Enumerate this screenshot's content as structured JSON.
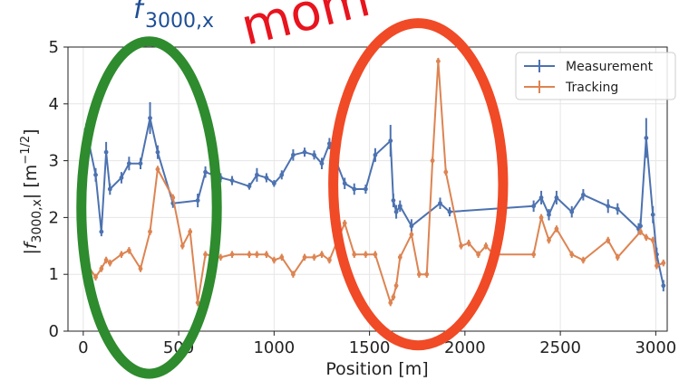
{
  "chart_data": {
    "type": "line",
    "title": "",
    "xlabel": "Position [m]",
    "ylabel_parts": {
      "prefix": "|f",
      "subscript": "3000,x",
      "middle": "| [m",
      "superscript": "−1/2",
      "suffix": "]"
    },
    "xlim": [
      -80,
      3060
    ],
    "ylim": [
      0,
      5
    ],
    "x_ticks": [
      0,
      500,
      1000,
      1500,
      2000,
      2500,
      3000
    ],
    "y_ticks": [
      0,
      1,
      2,
      3,
      4,
      5
    ],
    "grid": true,
    "legend": {
      "position": "top-right"
    },
    "top_fragments": {
      "left": {
        "text": "f",
        "subscript": "3000,x",
        "color": "#1f4e96"
      },
      "right": {
        "text": "mom",
        "color": "#e8141e"
      }
    },
    "annotations": [
      {
        "shape": "ellipse",
        "color": "#2e8b2e",
        "x_range": [
          -10,
          700
        ],
        "y_range": [
          -0.75,
          5.1
        ]
      },
      {
        "shape": "ellipse",
        "color": "#f04a26",
        "x_range": [
          1310,
          2200
        ],
        "y_range": [
          -0.25,
          5.42
        ]
      }
    ],
    "series": [
      {
        "name": "Measurement",
        "color": "#4c72b0",
        "x": [
          0,
          15,
          65,
          95,
          120,
          140,
          200,
          240,
          300,
          350,
          390,
          470,
          600,
          640,
          720,
          780,
          870,
          910,
          960,
          1000,
          1040,
          1100,
          1160,
          1210,
          1250,
          1290,
          1370,
          1420,
          1480,
          1530,
          1610,
          1625,
          1640,
          1660,
          1720,
          1870,
          1920,
          2360,
          2400,
          2440,
          2480,
          2560,
          2620,
          2750,
          2800,
          2910,
          2920,
          2950,
          2985,
          3005,
          3040
        ],
        "y": [
          2.8,
          3.55,
          2.75,
          1.75,
          3.15,
          2.5,
          2.7,
          2.95,
          2.95,
          3.75,
          3.15,
          2.25,
          2.3,
          2.8,
          2.7,
          2.65,
          2.55,
          2.75,
          2.7,
          2.6,
          2.75,
          3.1,
          3.15,
          3.1,
          2.95,
          3.3,
          2.6,
          2.5,
          2.5,
          3.1,
          3.35,
          2.3,
          2.1,
          2.2,
          1.85,
          2.25,
          2.1,
          2.2,
          2.35,
          2.05,
          2.35,
          2.1,
          2.4,
          2.2,
          2.15,
          1.8,
          1.85,
          3.4,
          2.05,
          1.35,
          0.8
        ],
        "err": [
          0.12,
          0.1,
          0.12,
          0.08,
          0.18,
          0.1,
          0.1,
          0.12,
          0.1,
          0.28,
          0.12,
          0.08,
          0.12,
          0.1,
          0.08,
          0.08,
          0.06,
          0.12,
          0.08,
          0.06,
          0.08,
          0.1,
          0.08,
          0.08,
          0.1,
          0.1,
          0.1,
          0.1,
          0.08,
          0.12,
          0.28,
          0.12,
          0.12,
          0.1,
          0.12,
          0.1,
          0.08,
          0.1,
          0.12,
          0.1,
          0.12,
          0.1,
          0.1,
          0.12,
          0.1,
          0.1,
          0.12,
          0.35,
          0.15,
          0.12,
          0.1
        ]
      },
      {
        "name": "Tracking",
        "color": "#dd8452",
        "x": [
          0,
          15,
          65,
          95,
          120,
          140,
          200,
          240,
          300,
          350,
          390,
          470,
          520,
          560,
          600,
          640,
          720,
          780,
          870,
          910,
          960,
          1000,
          1040,
          1100,
          1160,
          1210,
          1250,
          1290,
          1370,
          1420,
          1480,
          1530,
          1610,
          1625,
          1640,
          1660,
          1720,
          1760,
          1800,
          1830,
          1860,
          1900,
          1980,
          2020,
          2070,
          2110,
          2150,
          2360,
          2400,
          2440,
          2480,
          2560,
          2620,
          2750,
          2800,
          2920,
          2950,
          2985,
          3005,
          3040
        ],
        "y": [
          1.2,
          1.2,
          0.95,
          1.1,
          1.25,
          1.2,
          1.35,
          1.42,
          1.1,
          1.75,
          2.85,
          2.35,
          1.5,
          1.75,
          0.5,
          1.35,
          1.3,
          1.35,
          1.35,
          1.35,
          1.35,
          1.25,
          1.3,
          1.0,
          1.3,
          1.3,
          1.35,
          1.25,
          1.9,
          1.35,
          1.35,
          1.35,
          0.5,
          0.6,
          0.8,
          1.3,
          1.7,
          1.0,
          1.0,
          3.0,
          4.75,
          2.8,
          1.5,
          1.55,
          1.35,
          1.5,
          1.35,
          1.35,
          2.0,
          1.6,
          1.8,
          1.35,
          1.25,
          1.6,
          1.3,
          1.75,
          1.65,
          1.6,
          1.15,
          1.2
        ],
        "err": [
          0.06,
          0.06,
          0.06,
          0.06,
          0.06,
          0.06,
          0.06,
          0.06,
          0.06,
          0.06,
          0.06,
          0.06,
          0.06,
          0.06,
          0.06,
          0.06,
          0.06,
          0.06,
          0.06,
          0.06,
          0.06,
          0.06,
          0.06,
          0.06,
          0.06,
          0.06,
          0.06,
          0.06,
          0.06,
          0.06,
          0.06,
          0.06,
          0.06,
          0.06,
          0.06,
          0.06,
          0.06,
          0.06,
          0.06,
          0.06,
          0.06,
          0.06,
          0.06,
          0.06,
          0.06,
          0.06,
          0.06,
          0.06,
          0.06,
          0.06,
          0.06,
          0.06,
          0.06,
          0.06,
          0.06,
          0.06,
          0.06,
          0.06,
          0.06,
          0.06
        ]
      }
    ]
  }
}
